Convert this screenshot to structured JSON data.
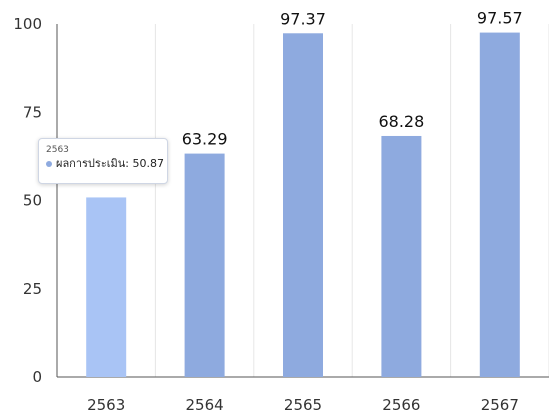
{
  "chart_data": {
    "type": "bar",
    "categories": [
      "2563",
      "2564",
      "2565",
      "2566",
      "2567"
    ],
    "values": [
      50.87,
      63.29,
      97.37,
      68.28,
      97.57
    ],
    "data_labels": [
      "",
      "63.29",
      "97.37",
      "68.28",
      "97.57"
    ],
    "series_name": "ผลการประเมิน",
    "ylim": [
      0,
      100
    ],
    "yticks": [
      0,
      25,
      50,
      75,
      100
    ],
    "grid": "vertical-category-lines",
    "colors": {
      "bar": "#8eaadf",
      "bar_highlight": "#a9c4f5"
    },
    "highlighted_index": 0,
    "tooltip": {
      "title": "2563",
      "label": "ผลการประเมิน: 50.87"
    }
  }
}
